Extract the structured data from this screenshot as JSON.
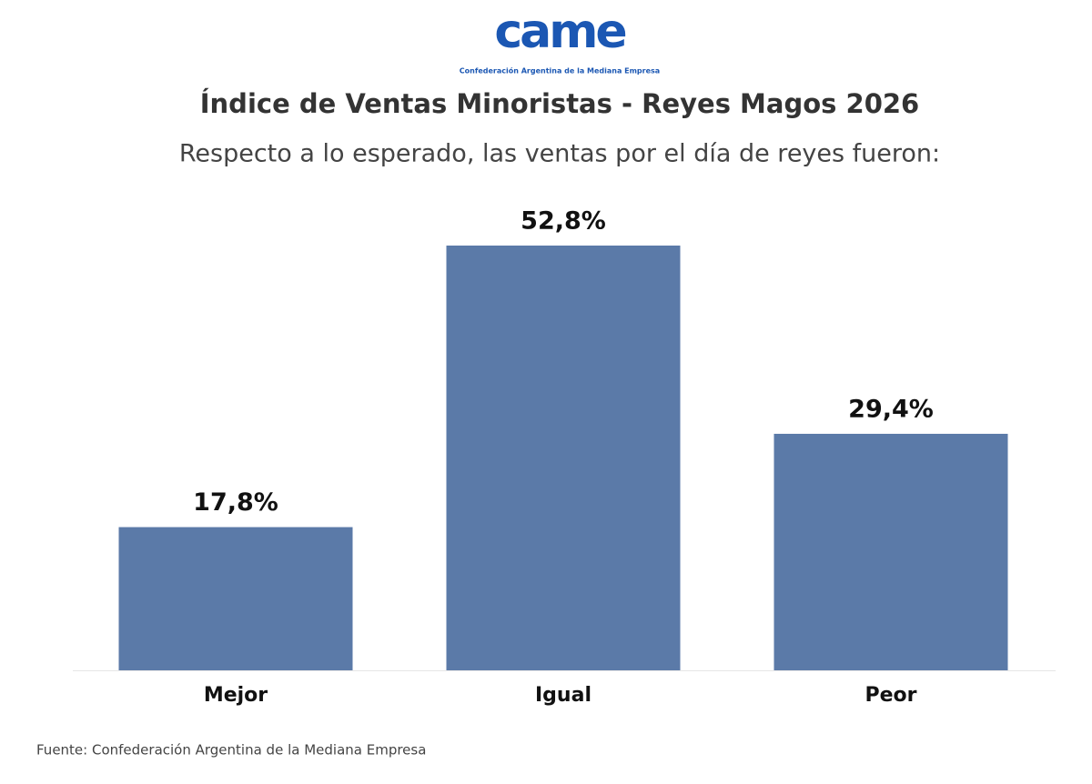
{
  "chart_data": {
    "type": "bar",
    "logo": "came",
    "logo_caption": "Confederación Argentina de la Mediana Empresa",
    "title": "Índice de Ventas Minoristas - Reyes Magos 2026",
    "subtitle": "Respecto a lo esperado, las ventas por el día de reyes fueron:",
    "categories": [
      "Mejor",
      "Igual",
      "Peor"
    ],
    "values": [
      17.8,
      52.8,
      29.4
    ],
    "value_labels": [
      "17,8%",
      "52,8%",
      "29,4%"
    ],
    "color": "#5b7aa8",
    "source": "Fuente: Confederación Argentina de la Mediana Empresa"
  }
}
